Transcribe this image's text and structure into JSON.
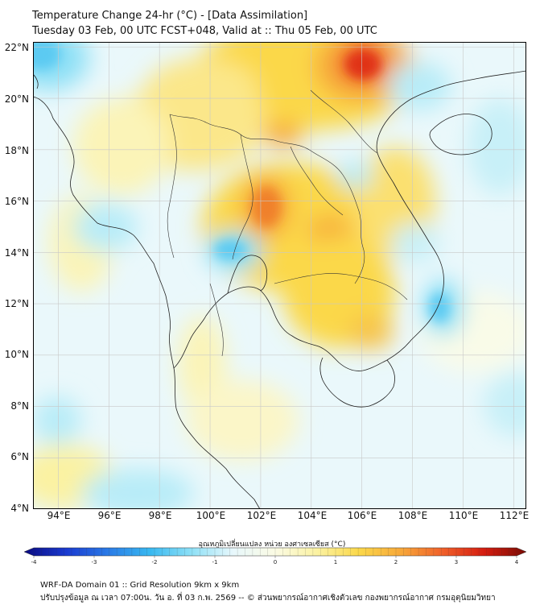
{
  "header": {
    "title_line1": "Temperature Change 24-hr (°C) - [Data Assimilation]",
    "title_line2": "Tuesday 03 Feb, 00 UTC FCST+048, Valid at :: Thu 05 Feb, 00 UTC"
  },
  "map": {
    "lat_labels": [
      "22°N",
      "20°N",
      "18°N",
      "16°N",
      "14°N",
      "12°N",
      "10°N",
      "8°N",
      "6°N",
      "4°N"
    ],
    "lon_labels": [
      "94°E",
      "96°E",
      "98°E",
      "100°E",
      "102°E",
      "104°E",
      "106°E",
      "108°E",
      "110°E",
      "112°E"
    ],
    "lon_range": [
      93,
      112.5
    ],
    "lat_range": [
      4,
      22.2
    ]
  },
  "colorbar": {
    "title": "อุณหภูมิเปลี่ยนแปลง หน่วย องศาเซลเซียส (°C)",
    "tick_labels": [
      "-4",
      "-3",
      "-2",
      "-1",
      "0",
      "1",
      "2",
      "3",
      "4"
    ],
    "range": [
      -4,
      4
    ],
    "colors": [
      "#0a0a80",
      "#1a3ad0",
      "#2a7ae6",
      "#38b8f0",
      "#8ee0f6",
      "#e8f8fc",
      "#fbfbe4",
      "#fbf2a2",
      "#fbd84a",
      "#f7a83a",
      "#f0602a",
      "#d41c10",
      "#7a0c04"
    ]
  },
  "footer": {
    "line1": "WRF-DA Domain 01 :: Grid Resolution 9km x 9km",
    "line2": "ปรับปรุงข้อมูล ณ เวลา 07:00น. วัน อ. ที่ 03 ก.พ. 2569 -- © ส่วนพยากรณ์อากาศเชิงตัวเลข กองพยากรณ์อากาศ กรมอุตุนิยมวิทยา"
  }
}
